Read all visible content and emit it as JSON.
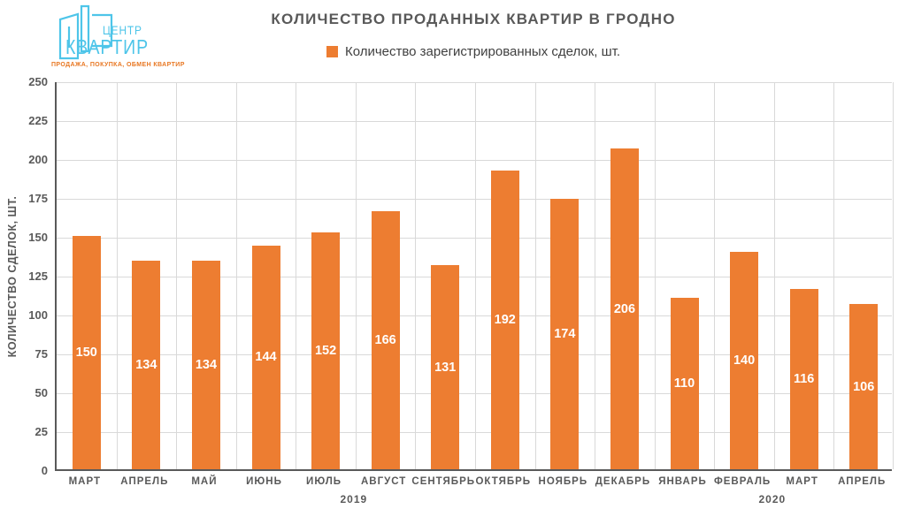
{
  "logo": {
    "name_line1": "ЦЕНТР",
    "name_line2": "КВАРТИР",
    "tagline": "ПРОДАЖА, ПОКУПКА, ОБМЕН КВАРТИР",
    "blue": "#4EC5E9",
    "orange": "#E87722"
  },
  "chart_data": {
    "type": "bar",
    "title": "КОЛИЧЕСТВО ПРОДАННЫХ КВАРТИР В ГРОДНО",
    "legend_entries": [
      "Количество зарегистрированных сделок, шт."
    ],
    "legend_position": "top",
    "xlabel": "",
    "ylabel": "КОЛИЧЕСТВО СДЕЛОК,  ШТ.",
    "categories": [
      "МАРТ",
      "АПРЕЛЬ",
      "МАЙ",
      "ИЮНЬ",
      "ИЮЛЬ",
      "АВГУСТ",
      "СЕНТЯБРЬ",
      "ОКТЯБРЬ",
      "НОЯБРЬ",
      "ДЕКАБРЬ",
      "ЯНВАРЬ",
      "ФЕВРАЛЬ",
      "МАРТ",
      "АПРЕЛЬ"
    ],
    "values": [
      150,
      134,
      134,
      144,
      152,
      166,
      131,
      192,
      174,
      206,
      110,
      140,
      116,
      106
    ],
    "year_groups": [
      {
        "label": "2019",
        "from": 0,
        "to": 9
      },
      {
        "label": "2020",
        "from": 10,
        "to": 13
      }
    ],
    "ylim": [
      0,
      250
    ],
    "ytick_step": 25,
    "grid": true,
    "bar_color": "#ED7D31",
    "value_label_color": "#FFFFFF",
    "text_color": "#595959",
    "gridline_color": "#D9D9D9"
  }
}
